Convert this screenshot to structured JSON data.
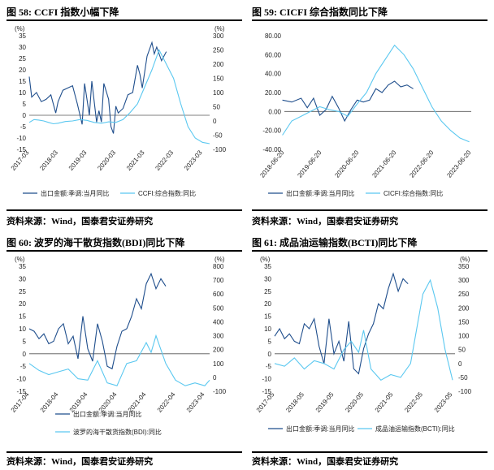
{
  "panels": [
    {
      "title": "图 58: CCFI 指数小幅下降",
      "source": "资料来源：Wind，国泰君安证券研究",
      "chart_data": {
        "type": "line",
        "dual_axis": true,
        "left_unit": "(%)",
        "right_unit": "(%)",
        "left_ylim": [
          -15,
          35
        ],
        "left_ticks": [
          -15,
          -10,
          -5,
          0,
          5,
          10,
          15,
          20,
          25,
          30,
          35
        ],
        "right_ylim": [
          -100,
          300
        ],
        "right_ticks": [
          -100,
          -50,
          0,
          50,
          100,
          150,
          200,
          250,
          300
        ],
        "x_range": [
          "2017-03",
          "2023-06"
        ],
        "x_ticks": [
          "2017-03",
          "2018-03",
          "2019-03",
          "2020-03",
          "2021-03",
          "2022-03",
          "2023-03"
        ],
        "grid": false,
        "series": [
          {
            "name": "出口金额:季调:当月同比",
            "axis": "left",
            "color": "#1f4e8c",
            "x": [
              "2017-03",
              "2017-04",
              "2017-06",
              "2017-08",
              "2017-10",
              "2017-12",
              "2018-02",
              "2018-03",
              "2018-05",
              "2018-07",
              "2018-09",
              "2018-11",
              "2019-01",
              "2019-02",
              "2019-04",
              "2019-05",
              "2019-07",
              "2019-08",
              "2019-09",
              "2019-10",
              "2019-12",
              "2020-01",
              "2020-02",
              "2020-03",
              "2020-04",
              "2020-06",
              "2020-08",
              "2020-10",
              "2020-12",
              "2021-01",
              "2021-02",
              "2021-04",
              "2021-06",
              "2021-07",
              "2021-08",
              "2021-10",
              "2021-12"
            ],
            "y": [
              17,
              8,
              10,
              6,
              7,
              9,
              1,
              6,
              11,
              12,
              13,
              5,
              -4,
              14,
              0,
              15,
              -3,
              2,
              -3,
              14,
              7,
              -5,
              -8,
              4,
              1,
              3,
              9,
              10,
              22,
              18,
              12,
              26,
              32,
              27,
              30,
              24,
              28
            ]
          },
          {
            "name": "CCFI:综合指数:同比",
            "axis": "right",
            "color": "#5bc8f0",
            "x": [
              "2017-03",
              "2017-05",
              "2017-07",
              "2017-09",
              "2017-11",
              "2018-01",
              "2018-03",
              "2018-06",
              "2018-09",
              "2018-12",
              "2019-03",
              "2019-06",
              "2019-09",
              "2019-12",
              "2020-03",
              "2020-06",
              "2020-09",
              "2020-12",
              "2021-03",
              "2021-06",
              "2021-09",
              "2021-12",
              "2022-03",
              "2022-06",
              "2022-09",
              "2022-12",
              "2023-03",
              "2023-06"
            ],
            "y": [
              -5,
              5,
              3,
              0,
              -5,
              -10,
              -8,
              -2,
              0,
              5,
              2,
              -5,
              -8,
              -3,
              -5,
              5,
              30,
              60,
              120,
              180,
              250,
              200,
              150,
              60,
              -20,
              -60,
              -75,
              -80
            ]
          }
        ]
      }
    },
    {
      "title": "图 59: CICFI 综合指数同比下降",
      "source": "资料来源：Wind，国泰君安证券研究",
      "chart_data": {
        "type": "line",
        "dual_axis": false,
        "left_ylim": [
          -40,
          80
        ],
        "left_ticks": [
          "-40.00",
          "-20.00",
          "0.00",
          "20.00",
          "40.00",
          "60.00",
          "80.00"
        ],
        "x_range": [
          "2018-06-20",
          "2023-06-20"
        ],
        "x_ticks": [
          "2018-06-20",
          "2019-06-20",
          "2020-06-20",
          "2021-06-20",
          "2022-06-20",
          "2023-06-20"
        ],
        "grid": false,
        "series": [
          {
            "name": "出口金额:季调:当月同比",
            "axis": "left",
            "color": "#1f4e8c",
            "x": [
              "2018-06",
              "2018-09",
              "2018-12",
              "2019-02",
              "2019-04",
              "2019-06",
              "2019-08",
              "2019-10",
              "2019-12",
              "2020-02",
              "2020-04",
              "2020-06",
              "2020-08",
              "2020-10",
              "2020-12",
              "2021-02",
              "2021-04",
              "2021-06",
              "2021-08",
              "2021-10",
              "2021-12"
            ],
            "y": [
              12,
              10,
              14,
              4,
              14,
              -4,
              2,
              16,
              4,
              -10,
              2,
              12,
              10,
              12,
              24,
              20,
              28,
              32,
              26,
              28,
              24
            ]
          },
          {
            "name": "CICFI:综合指数:同比",
            "axis": "left",
            "color": "#5bc8f0",
            "x": [
              "2018-06",
              "2018-09",
              "2018-12",
              "2019-03",
              "2019-06",
              "2019-09",
              "2019-12",
              "2020-03",
              "2020-06",
              "2020-09",
              "2020-12",
              "2021-03",
              "2021-06",
              "2021-09",
              "2021-12",
              "2022-03",
              "2022-06",
              "2022-09",
              "2022-12",
              "2023-03",
              "2023-06"
            ],
            "y": [
              -25,
              -10,
              -5,
              0,
              5,
              2,
              0,
              -5,
              8,
              20,
              40,
              55,
              70,
              60,
              45,
              25,
              5,
              -10,
              -20,
              -28,
              -32
            ]
          }
        ]
      }
    },
    {
      "title": "图 60: 波罗的海干散货指数(BDI)同比下降",
      "source": "资料来源：Wind，国泰君安证券研究",
      "chart_data": {
        "type": "line",
        "dual_axis": true,
        "left_unit": "(%)",
        "right_unit": "(%)",
        "left_ylim": [
          -15,
          35
        ],
        "left_ticks": [
          -15,
          -10,
          -5,
          0,
          5,
          10,
          15,
          20,
          25,
          30,
          35
        ],
        "right_ylim": [
          -100,
          800
        ],
        "right_ticks": [
          -100,
          0,
          100,
          200,
          300,
          400,
          500,
          600,
          700,
          800
        ],
        "x_range": [
          "2017-04",
          "2023-06"
        ],
        "x_ticks": [
          "2017-04",
          "2018-04",
          "2019-04",
          "2020-04",
          "2021-04",
          "2022-04",
          "2023-04"
        ],
        "grid": false,
        "series": [
          {
            "name": "出口金额:季调:当月同比",
            "axis": "left",
            "color": "#1f4e8c",
            "x": [
              "2017-04",
              "2017-06",
              "2017-08",
              "2017-10",
              "2017-12",
              "2018-02",
              "2018-04",
              "2018-06",
              "2018-08",
              "2018-10",
              "2018-12",
              "2019-02",
              "2019-04",
              "2019-06",
              "2019-08",
              "2019-10",
              "2019-12",
              "2020-02",
              "2020-04",
              "2020-06",
              "2020-08",
              "2020-10",
              "2020-12",
              "2021-02",
              "2021-04",
              "2021-06",
              "2021-08",
              "2021-10",
              "2021-12"
            ],
            "y": [
              10,
              9,
              6,
              8,
              4,
              5,
              10,
              12,
              4,
              7,
              -2,
              15,
              2,
              -3,
              12,
              5,
              -5,
              -6,
              3,
              9,
              10,
              15,
              22,
              18,
              28,
              32,
              26,
              30,
              27
            ]
          },
          {
            "name": "波罗的海干散货指数(BDI):同比",
            "axis": "right",
            "color": "#5bc8f0",
            "x": [
              "2017-04",
              "2017-08",
              "2017-12",
              "2018-04",
              "2018-08",
              "2018-12",
              "2019-04",
              "2019-08",
              "2019-12",
              "2020-04",
              "2020-08",
              "2020-12",
              "2021-04",
              "2021-06",
              "2021-08",
              "2021-10",
              "2021-12",
              "2022-04",
              "2022-08",
              "2022-12",
              "2023-04",
              "2023-06"
            ],
            "y": [
              100,
              50,
              20,
              40,
              60,
              -10,
              -20,
              120,
              -40,
              -60,
              100,
              120,
              250,
              180,
              300,
              200,
              100,
              -20,
              -60,
              -40,
              -60,
              -20
            ]
          }
        ]
      }
    },
    {
      "title": "图 61: 成品油运输指数(BCTI)同比下降",
      "source": "资料来源：Wind，国泰君安证券研究",
      "chart_data": {
        "type": "line",
        "dual_axis": true,
        "left_unit": "(%)",
        "right_unit": "(%)",
        "left_ylim": [
          -15,
          35
        ],
        "left_ticks": [
          -15,
          -10,
          -5,
          0,
          5,
          10,
          15,
          20,
          25,
          30,
          35
        ],
        "right_ylim": [
          -100,
          350
        ],
        "right_ticks": [
          -100,
          -50,
          0,
          50,
          100,
          150,
          200,
          250,
          300,
          350
        ],
        "x_range": [
          "2017-05",
          "2023-06"
        ],
        "x_ticks": [
          "2017-05",
          "2018-05",
          "2019-05",
          "2020-05",
          "2021-05",
          "2022-05",
          "2023-05"
        ],
        "grid": false,
        "series": [
          {
            "name": "出口金额:季调:当月同比",
            "axis": "left",
            "color": "#1f4e8c",
            "x": [
              "2017-05",
              "2017-07",
              "2017-09",
              "2017-11",
              "2018-01",
              "2018-03",
              "2018-05",
              "2018-07",
              "2018-09",
              "2018-11",
              "2019-01",
              "2019-03",
              "2019-05",
              "2019-07",
              "2019-09",
              "2019-11",
              "2020-01",
              "2020-03",
              "2020-05",
              "2020-07",
              "2020-09",
              "2020-11",
              "2021-01",
              "2021-03",
              "2021-05",
              "2021-07",
              "2021-09",
              "2021-11"
            ],
            "y": [
              7,
              10,
              6,
              8,
              5,
              4,
              12,
              10,
              14,
              3,
              -4,
              14,
              0,
              5,
              -3,
              13,
              -6,
              -8,
              2,
              8,
              12,
              20,
              18,
              26,
              32,
              25,
              30,
              28
            ]
          },
          {
            "name": "成品油运输指数(BCTI):同比",
            "axis": "right",
            "color": "#5bc8f0",
            "x": [
              "2017-05",
              "2017-09",
              "2018-01",
              "2018-05",
              "2018-09",
              "2019-01",
              "2019-05",
              "2019-09",
              "2019-12",
              "2020-03",
              "2020-05",
              "2020-08",
              "2020-12",
              "2021-04",
              "2021-08",
              "2021-12",
              "2022-03",
              "2022-05",
              "2022-08",
              "2022-11",
              "2023-02",
              "2023-05"
            ],
            "y": [
              0,
              -10,
              20,
              -20,
              10,
              0,
              -20,
              50,
              80,
              40,
              120,
              -20,
              -60,
              -40,
              -50,
              0,
              150,
              250,
              300,
              200,
              50,
              -60
            ]
          }
        ]
      }
    }
  ]
}
